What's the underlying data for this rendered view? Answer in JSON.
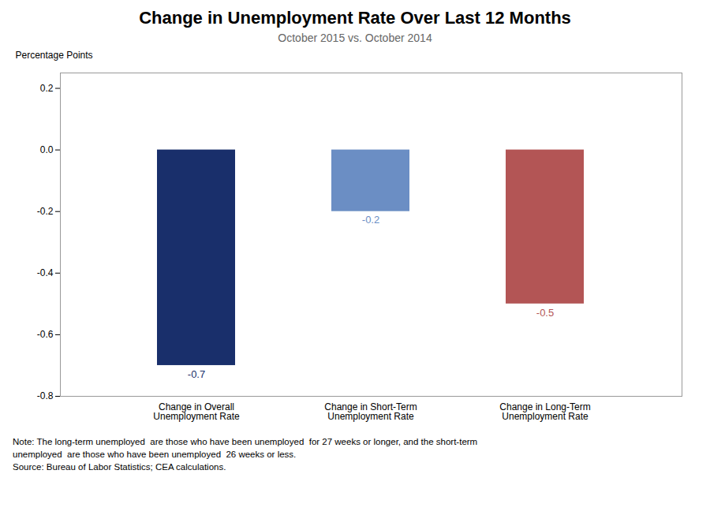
{
  "chart_data": {
    "type": "bar",
    "title": "Change in Unemployment Rate Over Last 12 Months",
    "subtitle": "October 2015 vs. October 2014",
    "ylabel": "Percentage Points",
    "categories": [
      "Change in Overall\nUnemployment Rate",
      "Change in Short-Term\nUnemployment Rate",
      "Change in Long-Term\nUnemployment Rate"
    ],
    "values": [
      -0.7,
      -0.2,
      -0.5
    ],
    "colors": [
      "#192f6b",
      "#6b8ec4",
      "#b35555"
    ],
    "ylim": [
      -0.8,
      0.25
    ],
    "yticks": [
      -0.8,
      -0.6,
      -0.4,
      -0.2,
      {
        "value": 0.0,
        "label": "0.0"
      },
      0.2
    ],
    "grid": false,
    "data_labels": true,
    "annotations": [
      "Note: The long-term unemployed  are those who have been unemployed  for 27 weeks or longer, and the short-term",
      "unemployed  are those who have been unemployed  26 weeks or less.",
      "Source: Bureau of Labor Statistics; CEA calculations."
    ]
  }
}
